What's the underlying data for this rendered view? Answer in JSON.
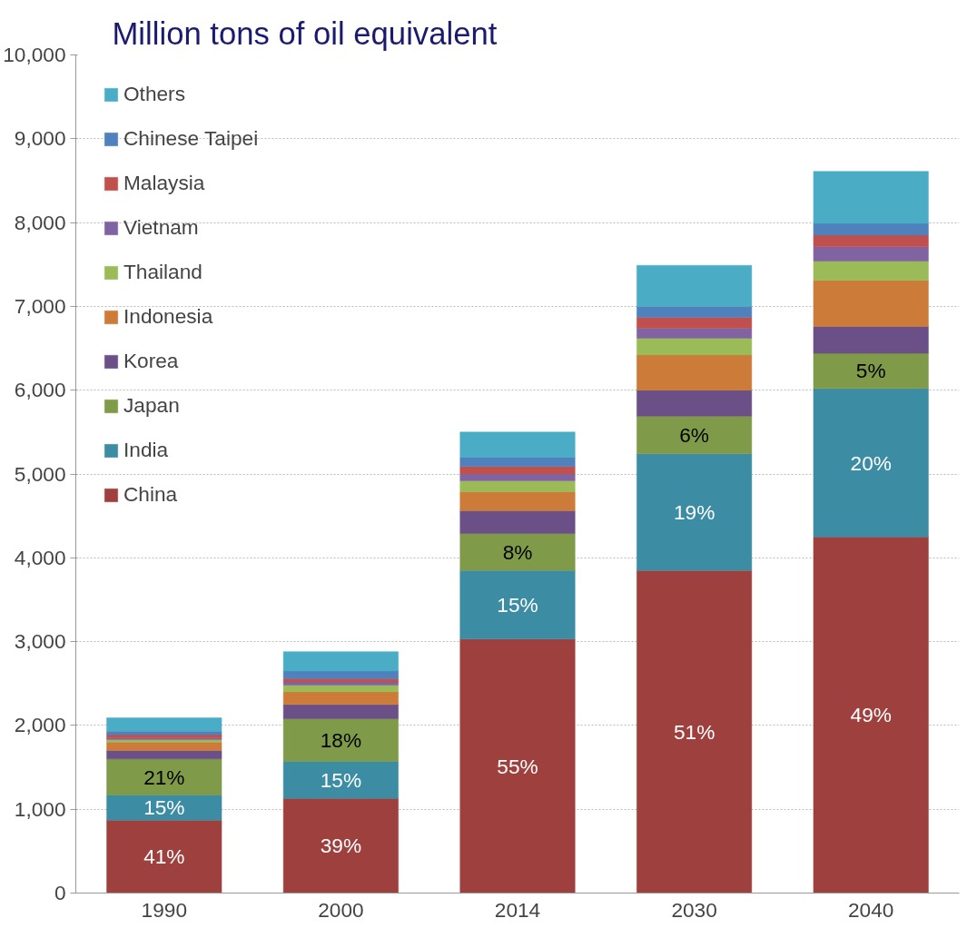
{
  "chart_data": {
    "type": "bar",
    "stacked": true,
    "title": "Million tons of oil equivalent",
    "categories": [
      "1990",
      "2000",
      "2014",
      "2030",
      "2040"
    ],
    "series": [
      {
        "name": "China",
        "color": "#9e413e",
        "values": [
          870,
          1130,
          3030,
          3850,
          4250
        ]
      },
      {
        "name": "India",
        "color": "#3c8ca3",
        "values": [
          300,
          440,
          820,
          1390,
          1770
        ]
      },
      {
        "name": "Japan",
        "color": "#7f9a48",
        "values": [
          430,
          510,
          440,
          450,
          420
        ]
      },
      {
        "name": "Korea",
        "color": "#6a5087",
        "values": [
          100,
          170,
          270,
          310,
          320
        ]
      },
      {
        "name": "Indonesia",
        "color": "#cc7b38",
        "values": [
          100,
          150,
          230,
          420,
          550
        ]
      },
      {
        "name": "Thailand",
        "color": "#9bbb59",
        "values": [
          30,
          80,
          130,
          200,
          230
        ]
      },
      {
        "name": "Vietnam",
        "color": "#8064a2",
        "values": [
          20,
          40,
          80,
          120,
          170
        ]
      },
      {
        "name": "Malaysia",
        "color": "#c0504d",
        "values": [
          40,
          40,
          90,
          130,
          140
        ]
      },
      {
        "name": "Chinese Taipei",
        "color": "#4f81bd",
        "values": [
          40,
          90,
          110,
          130,
          140
        ]
      },
      {
        "name": "Others",
        "color": "#4bacc6",
        "values": [
          160,
          230,
          300,
          490,
          620
        ]
      }
    ],
    "annotations": [
      "41%",
      "39%",
      "55%",
      "51%",
      "49%",
      "15%",
      "15%",
      "15%",
      "19%",
      "20%",
      "21%",
      "18%",
      "8%",
      "6%",
      "5%"
    ],
    "ylim": [
      0,
      10000
    ],
    "yticks": [
      0,
      {
        "value": 1000,
        "label": "1,000"
      },
      {
        "value": 2000,
        "label": "2,000"
      },
      {
        "value": 3000,
        "label": "3,000"
      },
      {
        "value": 4000,
        "label": "4,000"
      },
      {
        "value": 5000,
        "label": "5,000"
      },
      {
        "value": 6000,
        "label": "6,000"
      },
      {
        "value": 7000,
        "label": "7,000"
      },
      {
        "value": 8000,
        "label": "8,000"
      },
      {
        "value": 9000,
        "label": "9,000"
      },
      {
        "value": 10000,
        "label": "10,000"
      }
    ],
    "grid": "y",
    "legend": "top left"
  }
}
